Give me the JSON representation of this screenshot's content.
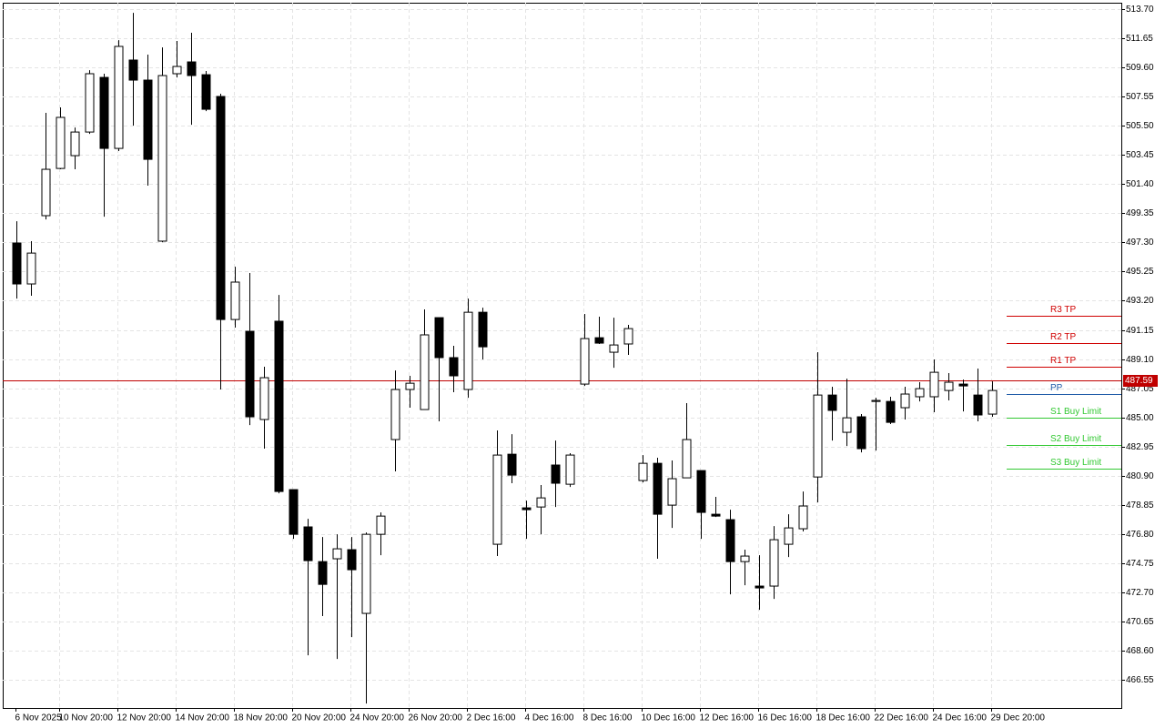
{
  "chart_data": {
    "type": "candlestick",
    "categories": [
      "6 Nov 2025",
      null,
      null,
      "10 Nov 20:00",
      null,
      null,
      null,
      "12 Nov 20:00",
      null,
      null,
      null,
      "14 Nov 20:00",
      null,
      null,
      null,
      "18 Nov 20:00",
      null,
      null,
      null,
      "20 Nov 20:00",
      null,
      null,
      null,
      "24 Nov 20:00",
      null,
      null,
      null,
      "26 Nov 20:00",
      null,
      null,
      null,
      "2 Dec 16:00",
      null,
      null,
      null,
      "4 Dec 16:00",
      null,
      null,
      null,
      "8 Dec 16:00",
      null,
      null,
      null,
      "10 Dec 16:00",
      null,
      null,
      null,
      "12 Dec 16:00",
      null,
      null,
      null,
      "16 Dec 16:00",
      null,
      null,
      null,
      "18 Dec 16:00",
      null,
      null,
      null,
      "22 Dec 16:00",
      null,
      null,
      null,
      "24 Dec 16:00",
      null,
      null,
      null,
      "29 Dec 20:00"
    ],
    "open": [
      497.26,
      494.38,
      499.18,
      502.5,
      503.4,
      505.06,
      508.9,
      503.91,
      510.12,
      508.71,
      497.39,
      509.16,
      509.99,
      509.09,
      507.56,
      491.88,
      491.05,
      484.85,
      491.76,
      479.92,
      477.3,
      474.86,
      475.06,
      475.7,
      471.22,
      476.78,
      483.44,
      486.96,
      485.55,
      492.01,
      489.2,
      486.96,
      492.39,
      476.08,
      482.41,
      478.64,
      478.7,
      481.65,
      480.3,
      487.34,
      490.6,
      489.58,
      490.16,
      480.56,
      481.77,
      478.83,
      480.75,
      481.26,
      478.19,
      477.81,
      474.86,
      473.14,
      473.14,
      476.08,
      477.17,
      480.81,
      486.57,
      483.95,
      485.04,
      486.12,
      486.12,
      485.68,
      486.45,
      486.45,
      486.89,
      487.34,
      486.57,
      485.23
    ],
    "high": [
      498.79,
      497.39,
      506.41,
      506.79,
      505.38,
      509.41,
      509.16,
      511.52,
      513.44,
      510.5,
      511.01,
      511.46,
      512.04,
      509.35,
      507.75,
      495.59,
      495.15,
      488.56,
      493.61,
      479.92,
      477.87,
      476.59,
      476.78,
      476.59,
      476.91,
      478.32,
      488.3,
      487.92,
      492.59,
      492.01,
      490.03,
      493.35,
      492.71,
      484.08,
      483.82,
      479.15,
      480.24,
      483.37,
      482.48,
      492.27,
      492.08,
      492.01,
      491.5,
      482.35,
      482.16,
      481.97,
      486.0,
      481.26,
      479.41,
      478.51,
      475.7,
      475.31,
      477.36,
      478.19,
      479.79,
      489.58,
      487.15,
      487.72,
      485.23,
      486.38,
      486.45,
      487.15,
      487.47,
      489.07,
      488.11,
      487.66,
      488.43,
      487.53
    ],
    "low": [
      493.35,
      493.55,
      498.92,
      502.44,
      502.44,
      504.93,
      499.11,
      503.72,
      505.51,
      501.29,
      497.32,
      508.9,
      505.57,
      506.53,
      486.96,
      491.31,
      484.46,
      482.8,
      479.66,
      476.46,
      468.27,
      471.03,
      468.02,
      469.55,
      464.88,
      475.31,
      481.2,
      485.68,
      485.55,
      484.72,
      486.77,
      486.38,
      489.07,
      475.25,
      480.37,
      476.46,
      476.78,
      478.7,
      480.11,
      487.21,
      490.16,
      488.49,
      489.39,
      480.43,
      475.06,
      477.23,
      480.75,
      476.46,
      478.0,
      472.56,
      473.2,
      471.47,
      472.24,
      475.18,
      476.98,
      479.02,
      483.37,
      482.99,
      482.54,
      482.67,
      484.53,
      484.85,
      486.12,
      485.36,
      486.19,
      485.42,
      484.72,
      485.04
    ],
    "close": [
      494.38,
      496.55,
      502.44,
      506.09,
      505.06,
      509.16,
      503.91,
      511.08,
      508.71,
      503.14,
      509.03,
      509.67,
      509.03,
      506.66,
      491.88,
      494.51,
      485.04,
      487.79,
      479.79,
      476.78,
      474.93,
      473.26,
      475.76,
      474.29,
      476.78,
      478.06,
      486.96,
      487.4,
      490.8,
      489.2,
      487.92,
      492.39,
      489.96,
      482.35,
      480.94,
      478.51,
      479.34,
      480.37,
      482.35,
      490.54,
      490.22,
      490.09,
      491.24,
      481.77,
      478.19,
      480.69,
      483.44,
      478.32,
      478.06,
      474.86,
      475.25,
      473.01,
      476.4,
      477.23,
      478.77,
      486.57,
      485.49,
      484.97,
      482.8,
      486.19,
      484.65,
      486.64,
      487.02,
      488.17,
      487.47,
      487.21,
      485.17,
      486.89
    ],
    "up_color": "#ffffff",
    "down_color": "#000000",
    "ylim": [
      464.57,
      514.15
    ],
    "yticks": [
      {
        "value": 513.7,
        "label": "513.70"
      },
      511.65,
      {
        "value": 509.6,
        "label": "509.60"
      },
      507.55,
      {
        "value": 505.5,
        "label": "505.50"
      },
      503.45,
      {
        "value": 501.4,
        "label": "501.40"
      },
      499.35,
      {
        "value": 497.3,
        "label": "497.30"
      },
      495.25,
      {
        "value": 493.2,
        "label": "493.20"
      },
      491.15,
      {
        "value": 489.1,
        "label": "489.10"
      },
      487.05,
      {
        "value": 485,
        "label": "485.00"
      },
      482.95,
      {
        "value": 480.9,
        "label": "480.90"
      },
      478.85,
      {
        "value": 476.8,
        "label": "476.80"
      },
      474.75,
      {
        "value": 472.7,
        "label": "472.70"
      },
      470.65,
      {
        "value": 468.6,
        "label": "468.60"
      },
      466.55
    ],
    "grid": true,
    "current_price": 487.59,
    "current_price_color": "#c00000",
    "levels": [
      {
        "name": "R3 TP",
        "value": 492.14,
        "color": "#d00000"
      },
      {
        "name": "R2 TP",
        "value": 490.22,
        "color": "#d00000"
      },
      {
        "name": "R1 TP",
        "value": 488.56,
        "color": "#d00000"
      },
      {
        "name": "PP",
        "value": 486.64,
        "color": "#1e5aa8"
      },
      {
        "name": "S1 Buy Limit",
        "value": 484.97,
        "color": "#32c832"
      },
      {
        "name": "S2 Buy Limit",
        "value": 483.05,
        "color": "#32c832"
      },
      {
        "name": "S3 Buy Limit",
        "value": 481.39,
        "color": "#32c832"
      }
    ]
  }
}
